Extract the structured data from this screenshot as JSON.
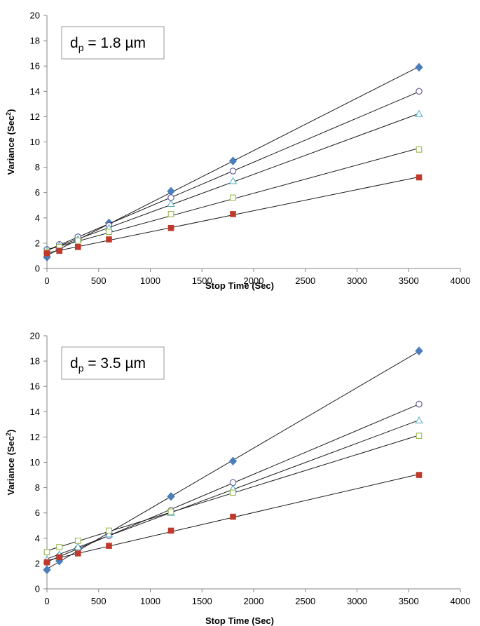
{
  "chart_data": [
    {
      "type": "scatter",
      "annotation": {
        "main": "d",
        "sub": "p",
        "rest": " = 1.8 µm"
      },
      "xlabel": "Stop Time (Sec)",
      "ylabel": {
        "main": "Variance (Sec",
        "sup": "2",
        "end": ")"
      },
      "xlim": [
        0,
        4000
      ],
      "ylim": [
        0,
        20
      ],
      "xticks": [
        0,
        500,
        1000,
        1500,
        2000,
        2500,
        3000,
        3500,
        4000
      ],
      "yticks": [
        0,
        2,
        4,
        6,
        8,
        10,
        12,
        14,
        16,
        18,
        20
      ],
      "grid": false,
      "series": [
        {
          "marker": "diamond",
          "color": "#4a7ebb",
          "fill": true,
          "x": [
            0,
            120,
            300,
            600,
            1200,
            1800,
            3600
          ],
          "y": [
            0.9,
            1.5,
            2.3,
            3.6,
            6.1,
            8.5,
            15.9
          ]
        },
        {
          "marker": "circle",
          "color": "#5c4e9a",
          "fill": false,
          "x": [
            0,
            120,
            300,
            600,
            1200,
            1800,
            3600
          ],
          "y": [
            1.5,
            1.9,
            2.5,
            3.4,
            5.6,
            7.7,
            14.0
          ]
        },
        {
          "marker": "triangle",
          "color": "#4bacc6",
          "fill": false,
          "x": [
            0,
            120,
            300,
            600,
            1200,
            1800,
            3600
          ],
          "y": [
            1.4,
            1.8,
            2.3,
            3.2,
            5.1,
            6.9,
            12.2
          ]
        },
        {
          "marker": "square",
          "color": "#8db33a",
          "fill": false,
          "x": [
            0,
            120,
            300,
            600,
            1200,
            1800,
            3600
          ],
          "y": [
            1.3,
            1.7,
            2.2,
            2.9,
            4.3,
            5.6,
            9.4
          ]
        },
        {
          "marker": "square",
          "color": "#c0392b",
          "fill": true,
          "x": [
            0,
            120,
            300,
            600,
            1200,
            1800,
            3600
          ],
          "y": [
            1.2,
            1.4,
            1.7,
            2.3,
            3.2,
            4.3,
            7.2
          ]
        }
      ]
    },
    {
      "type": "scatter",
      "annotation": {
        "main": "d",
        "sub": "p",
        "rest": " = 3.5 µm"
      },
      "xlabel": "Stop Time (Sec)",
      "ylabel": {
        "main": "Variance (Sec",
        "sup": "2",
        "end": ")"
      },
      "xlim": [
        0,
        4000
      ],
      "ylim": [
        0,
        20
      ],
      "xticks": [
        0,
        500,
        1000,
        1500,
        2000,
        2500,
        3000,
        3500,
        4000
      ],
      "yticks": [
        0,
        2,
        4,
        6,
        8,
        10,
        12,
        14,
        16,
        18,
        20
      ],
      "grid": false,
      "series": [
        {
          "marker": "diamond",
          "color": "#4a7ebb",
          "fill": true,
          "x": [
            0,
            120,
            300,
            600,
            1200,
            1800,
            3600
          ],
          "y": [
            1.5,
            2.2,
            3.1,
            4.4,
            7.3,
            10.1,
            18.8
          ]
        },
        {
          "marker": "circle",
          "color": "#5c4e9a",
          "fill": false,
          "x": [
            0,
            120,
            300,
            600,
            1200,
            1800,
            3600
          ],
          "y": [
            2.1,
            2.6,
            3.2,
            4.2,
            6.2,
            8.4,
            14.6
          ]
        },
        {
          "marker": "triangle",
          "color": "#4bacc6",
          "fill": false,
          "x": [
            0,
            120,
            300,
            600,
            1200,
            1800,
            3600
          ],
          "y": [
            2.3,
            2.7,
            3.3,
            4.3,
            6.0,
            7.9,
            13.3
          ]
        },
        {
          "marker": "square",
          "color": "#8db33a",
          "fill": false,
          "x": [
            0,
            120,
            300,
            600,
            1200,
            1800,
            3600
          ],
          "y": [
            2.9,
            3.3,
            3.8,
            4.6,
            6.1,
            7.6,
            12.1
          ]
        },
        {
          "marker": "square",
          "color": "#c0392b",
          "fill": true,
          "x": [
            0,
            120,
            300,
            600,
            1200,
            1800,
            3600
          ],
          "y": [
            2.1,
            2.5,
            2.8,
            3.4,
            4.6,
            5.7,
            9.0
          ]
        }
      ]
    }
  ]
}
